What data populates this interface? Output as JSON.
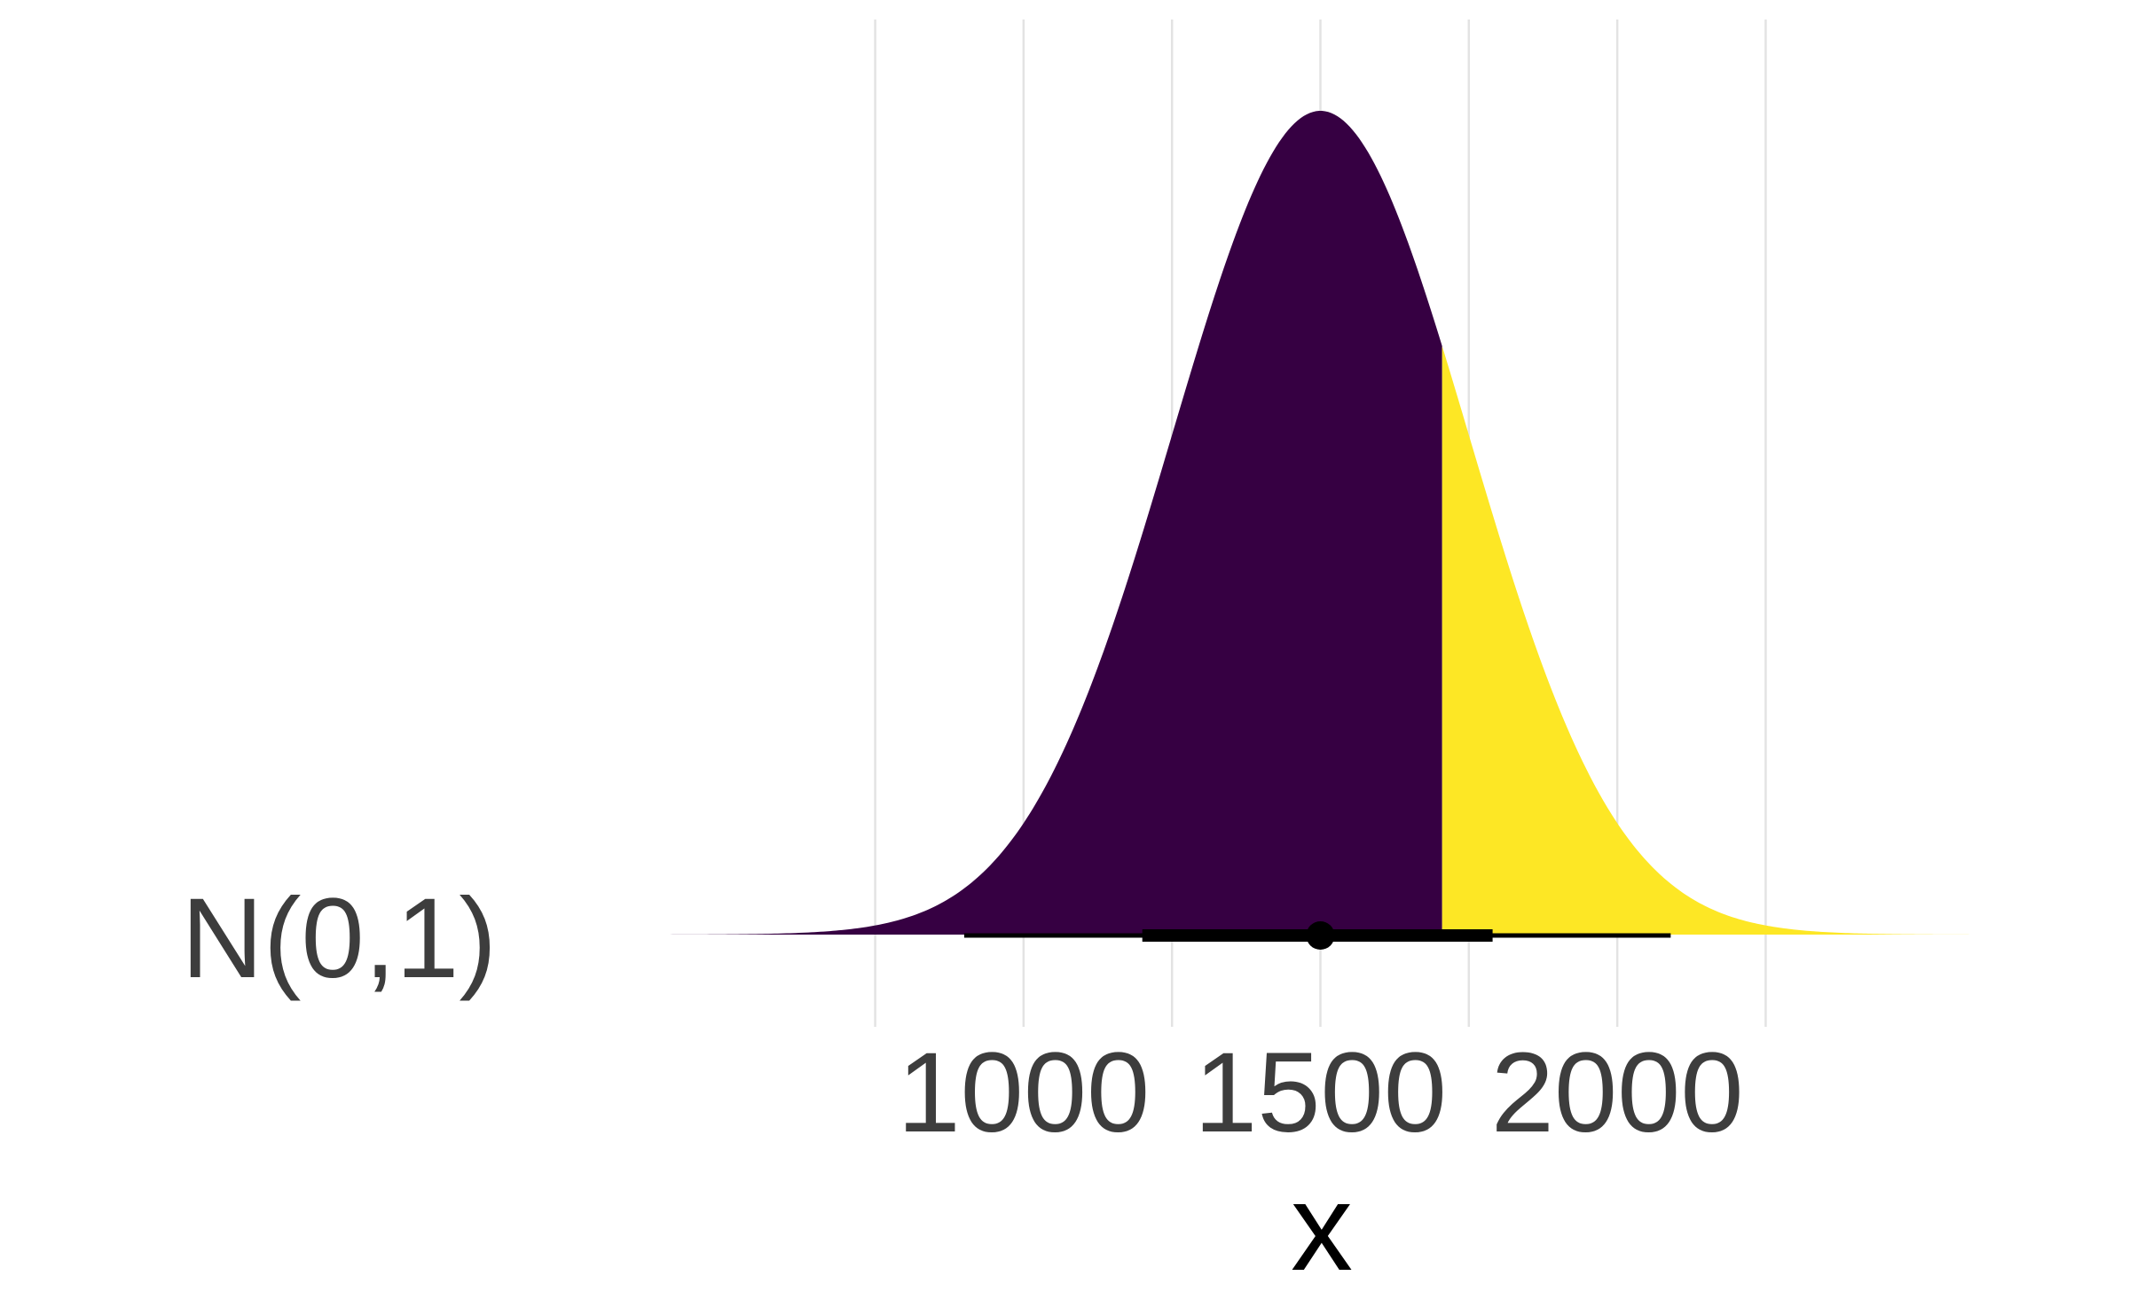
{
  "chart_data": {
    "type": "area",
    "distribution": "normal",
    "y_category": "N(0,1)",
    "mean": 1500,
    "sd": 250,
    "xlabel": "x",
    "ylabel": "",
    "title": "",
    "xlim": [
      150,
      2850
    ],
    "x_ticks": [
      1000,
      1500,
      2000
    ],
    "x_tick_labels": [
      "1000",
      "1500",
      "2000"
    ],
    "x_minor_gridlines": [
      750,
      1250,
      1750,
      2250
    ],
    "grid": "vertical",
    "fill_split_x": 1705,
    "fill_colors": {
      "below_split": "#360042",
      "above_split": "#fde725"
    },
    "point_interval": {
      "point": 1500,
      "inner_interval": [
        1200,
        1790
      ],
      "outer_interval": [
        900,
        2090
      ],
      "color": "#000000"
    }
  }
}
